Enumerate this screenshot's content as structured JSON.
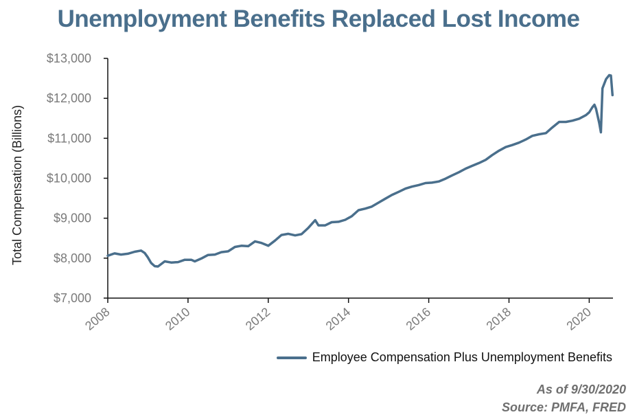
{
  "colors": {
    "title": "#4a6f8c",
    "series": "#4a6f8c",
    "axis": "#111111",
    "tick_text": "#7a7a7a"
  },
  "chart_data": {
    "type": "line",
    "title": "Unemployment Benefits Replaced Lost Income",
    "xlabel": "",
    "ylabel": "Total Compensation (Billions)",
    "xlim": [
      2008,
      2020.6
    ],
    "ylim": [
      7000,
      13000
    ],
    "y_ticks": [
      7000,
      8000,
      9000,
      10000,
      11000,
      12000,
      13000
    ],
    "y_tick_labels": [
      "$7,000",
      "$8,000",
      "$9,000",
      "$10,000",
      "$11,000",
      "$12,000",
      "$13,000"
    ],
    "x_ticks": [
      2008,
      2010,
      2012,
      2014,
      2016,
      2018,
      2020
    ],
    "x_tick_labels": [
      "2008",
      "2010",
      "2012",
      "2014",
      "2016",
      "2018",
      "2020"
    ],
    "series": [
      {
        "name": "Employee Compensation Plus Unemployment Benefits",
        "points": [
          [
            2008.0,
            8060
          ],
          [
            2008.17,
            8120
          ],
          [
            2008.33,
            8090
          ],
          [
            2008.5,
            8110
          ],
          [
            2008.67,
            8160
          ],
          [
            2008.83,
            8190
          ],
          [
            2008.92,
            8130
          ],
          [
            2009.0,
            8020
          ],
          [
            2009.08,
            7880
          ],
          [
            2009.17,
            7800
          ],
          [
            2009.25,
            7790
          ],
          [
            2009.42,
            7920
          ],
          [
            2009.58,
            7890
          ],
          [
            2009.75,
            7900
          ],
          [
            2009.92,
            7960
          ],
          [
            2010.08,
            7960
          ],
          [
            2010.17,
            7920
          ],
          [
            2010.33,
            7990
          ],
          [
            2010.5,
            8080
          ],
          [
            2010.67,
            8090
          ],
          [
            2010.83,
            8150
          ],
          [
            2011.0,
            8170
          ],
          [
            2011.17,
            8280
          ],
          [
            2011.33,
            8310
          ],
          [
            2011.5,
            8300
          ],
          [
            2011.67,
            8420
          ],
          [
            2011.83,
            8380
          ],
          [
            2012.0,
            8310
          ],
          [
            2012.17,
            8440
          ],
          [
            2012.33,
            8580
          ],
          [
            2012.5,
            8610
          ],
          [
            2012.67,
            8570
          ],
          [
            2012.83,
            8600
          ],
          [
            2013.0,
            8760
          ],
          [
            2013.17,
            8950
          ],
          [
            2013.25,
            8820
          ],
          [
            2013.42,
            8820
          ],
          [
            2013.58,
            8900
          ],
          [
            2013.75,
            8910
          ],
          [
            2013.92,
            8960
          ],
          [
            2014.08,
            9050
          ],
          [
            2014.25,
            9200
          ],
          [
            2014.42,
            9240
          ],
          [
            2014.58,
            9290
          ],
          [
            2014.75,
            9390
          ],
          [
            2014.92,
            9490
          ],
          [
            2015.08,
            9580
          ],
          [
            2015.25,
            9660
          ],
          [
            2015.42,
            9740
          ],
          [
            2015.58,
            9790
          ],
          [
            2015.75,
            9830
          ],
          [
            2015.92,
            9880
          ],
          [
            2016.08,
            9890
          ],
          [
            2016.25,
            9920
          ],
          [
            2016.42,
            9990
          ],
          [
            2016.58,
            10070
          ],
          [
            2016.75,
            10150
          ],
          [
            2016.92,
            10240
          ],
          [
            2017.08,
            10310
          ],
          [
            2017.25,
            10380
          ],
          [
            2017.42,
            10460
          ],
          [
            2017.58,
            10580
          ],
          [
            2017.75,
            10690
          ],
          [
            2017.92,
            10780
          ],
          [
            2018.08,
            10830
          ],
          [
            2018.25,
            10890
          ],
          [
            2018.42,
            10970
          ],
          [
            2018.58,
            11060
          ],
          [
            2018.75,
            11100
          ],
          [
            2018.92,
            11130
          ],
          [
            2019.08,
            11270
          ],
          [
            2019.25,
            11410
          ],
          [
            2019.42,
            11410
          ],
          [
            2019.58,
            11440
          ],
          [
            2019.75,
            11490
          ],
          [
            2019.92,
            11580
          ],
          [
            2020.0,
            11650
          ],
          [
            2020.08,
            11780
          ],
          [
            2020.13,
            11840
          ],
          [
            2020.17,
            11740
          ],
          [
            2020.25,
            11380
          ],
          [
            2020.29,
            11150
          ],
          [
            2020.33,
            12250
          ],
          [
            2020.42,
            12480
          ],
          [
            2020.5,
            12580
          ],
          [
            2020.54,
            12570
          ],
          [
            2020.58,
            12080
          ]
        ]
      }
    ],
    "legend": "bottom-right"
  },
  "legend_label": "Employee Compensation Plus Unemployment Benefits",
  "footnotes": {
    "as_of": "As of 9/30/2020",
    "source": "Source: PMFA, FRED"
  }
}
